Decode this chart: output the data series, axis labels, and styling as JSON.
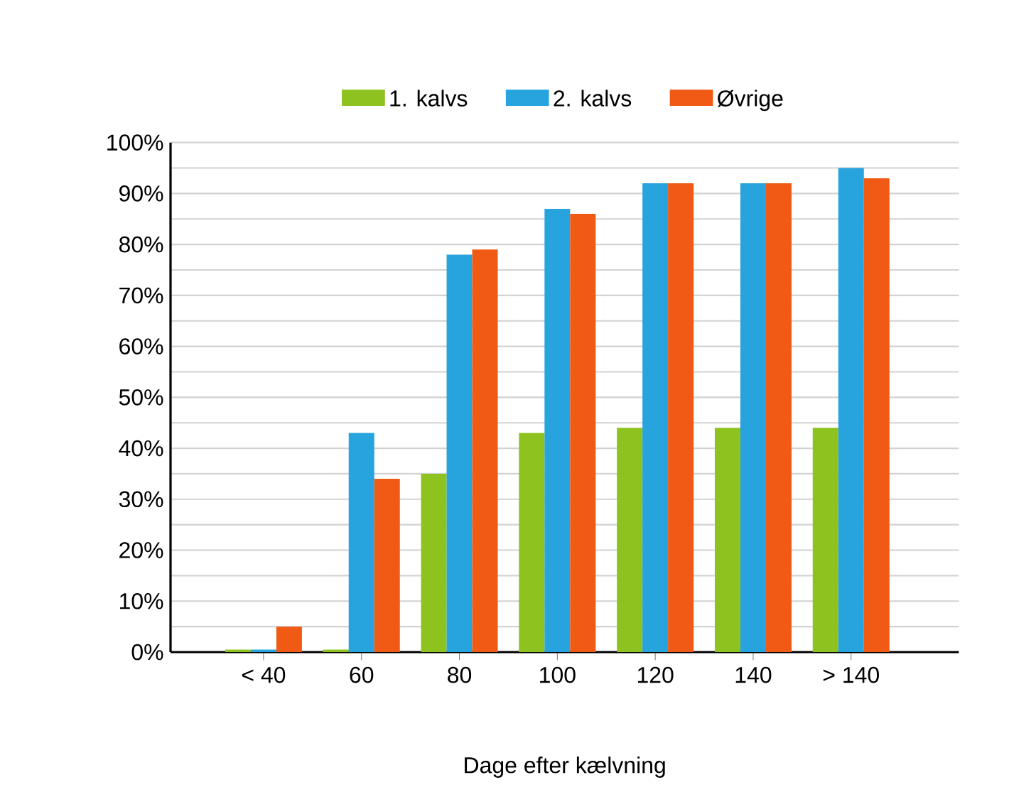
{
  "chart_data": {
    "type": "bar",
    "xlabel": "Dage efter kælvning",
    "categories": [
      "< 40",
      "60",
      "80",
      "100",
      "120",
      "140",
      "> 140"
    ],
    "series": [
      {
        "name": "1. kalvs",
        "color": "#8dc21f",
        "values": [
          0.5,
          0.5,
          35,
          43,
          44,
          44,
          44
        ]
      },
      {
        "name": "2. kalvs",
        "color": "#27a3dd",
        "values": [
          0.5,
          43,
          78,
          87,
          92,
          92,
          95
        ]
      },
      {
        "name": "Øvrige",
        "color": "#f05a14",
        "values": [
          5,
          34,
          79,
          86,
          92,
          92,
          93
        ]
      }
    ],
    "ylim": [
      0,
      100
    ],
    "yticks": [
      {
        "value": 0,
        "label": "0%"
      },
      {
        "value": 10,
        "label": "10%"
      },
      {
        "value": 20,
        "label": "20%"
      },
      {
        "value": 30,
        "label": "30%"
      },
      {
        "value": 40,
        "label": "40%"
      },
      {
        "value": 50,
        "label": "50%"
      },
      {
        "value": 60,
        "label": "60%"
      },
      {
        "value": 70,
        "label": "70%"
      },
      {
        "value": 80,
        "label": "80%"
      },
      {
        "value": 90,
        "label": "90%"
      },
      {
        "value": 100,
        "label": "100%"
      }
    ],
    "grid": "y",
    "legend": "top"
  }
}
